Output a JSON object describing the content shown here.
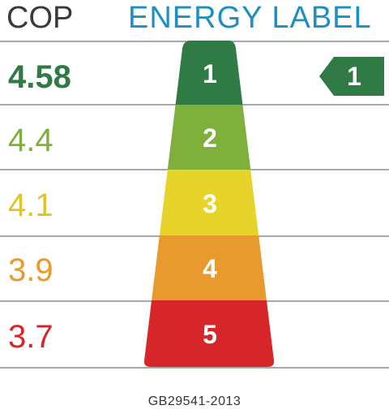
{
  "header": {
    "cop_label": "COP",
    "title": "ENERGY LABEL"
  },
  "grades": [
    {
      "cop": "4.58",
      "grade": "1",
      "color": "#2f7a45"
    },
    {
      "cop": "4.4",
      "grade": "2",
      "color": "#7fb03c"
    },
    {
      "cop": "4.1",
      "grade": "3",
      "color": "#e6d42a"
    },
    {
      "cop": "3.9",
      "grade": "4",
      "color": "#e99a2e"
    },
    {
      "cop": "3.7",
      "grade": "5",
      "color": "#d6262a"
    }
  ],
  "indicator": {
    "grade": "1",
    "color": "#2f7a45"
  },
  "footer": {
    "standard": "GB29541-2013"
  }
}
